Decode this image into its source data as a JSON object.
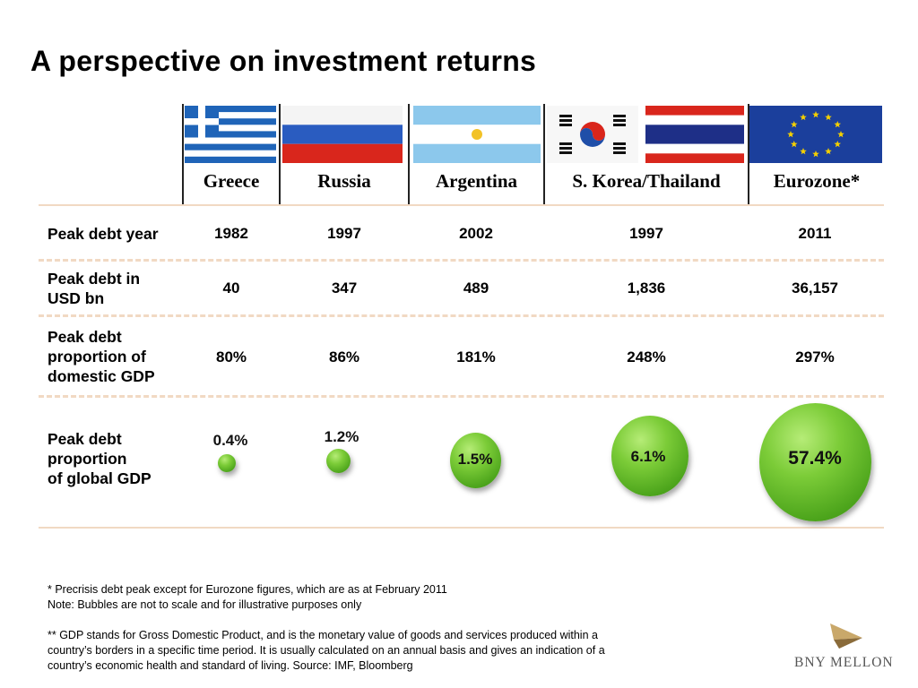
{
  "title": "A perspective on investment returns",
  "columns": [
    {
      "name": "Greece",
      "flag_icon": "greece-flag-icon"
    },
    {
      "name": "Russia",
      "flag_icon": "russia-flag-icon"
    },
    {
      "name": "Argentina",
      "flag_icon": "argentina-flag-icon"
    },
    {
      "name": "S. Korea/Thailand",
      "flag_icon": "south-korea-thailand-flags-icon"
    },
    {
      "name": "Eurozone*",
      "flag_icon": "eu-flag-icon"
    }
  ],
  "rows": {
    "peak_year": {
      "label": "Peak debt year",
      "values": [
        "1982",
        "1997",
        "2002",
        "1997",
        "2011"
      ]
    },
    "peak_usd": {
      "label_lines": [
        "Peak debt in",
        "USD bn"
      ],
      "values": [
        "40",
        "347",
        "489",
        "1,836",
        "36,157"
      ]
    },
    "peak_domestic": {
      "label_lines": [
        "Peak debt",
        "proportion of",
        "domestic GDP"
      ],
      "values": [
        "80%",
        "86%",
        "181%",
        "248%",
        "297%"
      ]
    },
    "peak_global": {
      "label_lines": [
        "Peak debt",
        "proportion",
        "of global GDP"
      ],
      "values": [
        "0.4%",
        "1.2%",
        "1.5%",
        "6.1%",
        "57.4%"
      ]
    }
  },
  "footnotes": {
    "line1": "* Precrisis debt peak except for Eurozone figures, which are as at February 2011",
    "line2": "Note:  Bubbles are not to scale and for illustrative purposes only",
    "line3": "** GDP stands for Gross Domestic Product, and is the monetary value of  goods and services produced within a",
    "line4": "country’s borders in a specific time period. It is usually calculated on an annual basis and gives an indication of a",
    "line5": "country’s economic health and standard of living.  Source: IMF, Bloomberg"
  },
  "logo": {
    "text": "BNY MELLON",
    "icon": "bny-mellon-logo-icon"
  },
  "colors": {
    "bubble": "#5cb52a",
    "divider": "#f1d9c3",
    "greece_blue": "#1f64b8",
    "eu_blue": "#1b3f9c"
  }
}
